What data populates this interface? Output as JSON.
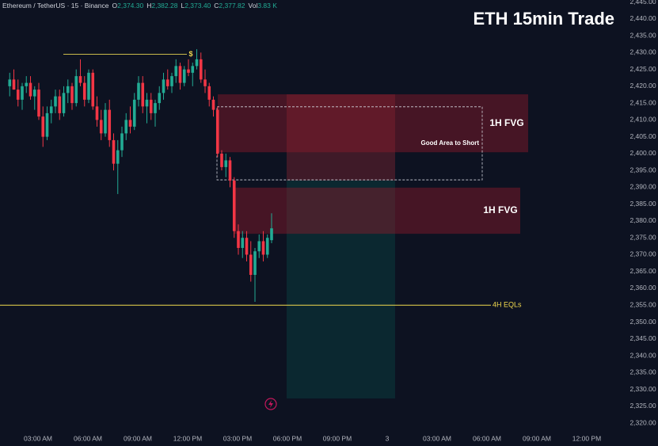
{
  "chart_data": {
    "type": "candlestick",
    "title": "ETH 15min Trade",
    "header": {
      "symbol": "Ethereum / TetherUS · 15 · Binance",
      "fields": [
        {
          "key": "O",
          "value": "2,374.30"
        },
        {
          "key": "H",
          "value": "2,382.28"
        },
        {
          "key": "L",
          "value": "2,373.40"
        },
        {
          "key": "C",
          "value": "2,377.82"
        },
        {
          "key": "Vol",
          "value": "3.83 K"
        }
      ]
    },
    "x_labels": [
      "03:00 AM",
      "06:00 AM",
      "09:00 AM",
      "12:00 PM",
      "03:00 PM",
      "06:00 PM",
      "09:00 PM",
      "3",
      "03:00 AM",
      "06:00 AM",
      "09:00 AM",
      "12:00 PM"
    ],
    "ylim": [
      2313.2,
      2445.6
    ],
    "yticks": [
      {
        "value": 2320,
        "label": "2,320.00"
      },
      {
        "value": 2325,
        "label": "2,325.00"
      },
      {
        "value": 2330,
        "label": "2,330.00"
      },
      {
        "value": 2335,
        "label": "2,335.00"
      },
      {
        "value": 2340,
        "label": "2,340.00"
      },
      {
        "value": 2345,
        "label": "2,345.00"
      },
      {
        "value": 2350,
        "label": "2,350.00"
      },
      {
        "value": 2355,
        "label": "2,355.00"
      },
      {
        "value": 2360,
        "label": "2,360.00"
      },
      {
        "value": 2365,
        "label": "2,365.00"
      },
      {
        "value": 2370,
        "label": "2,370.00"
      },
      {
        "value": 2375,
        "label": "2,375.00"
      },
      {
        "value": 2380,
        "label": "2,380.00"
      },
      {
        "value": 2385,
        "label": "2,385.00"
      },
      {
        "value": 2390,
        "label": "2,390.00"
      },
      {
        "value": 2395,
        "label": "2,395.00"
      },
      {
        "value": 2400,
        "label": "2,400.00"
      },
      {
        "value": 2405,
        "label": "2,405.00"
      },
      {
        "value": 2410,
        "label": "2,410.00"
      },
      {
        "value": 2415,
        "label": "2,415.00"
      },
      {
        "value": 2420,
        "label": "2,420.00"
      },
      {
        "value": 2425,
        "label": "2,425.00"
      },
      {
        "value": 2430,
        "label": "2,430.00"
      },
      {
        "value": 2435,
        "label": "2,435.00"
      },
      {
        "value": 2440,
        "label": "2,440.00"
      },
      {
        "value": 2445,
        "label": "2,445.00"
      }
    ],
    "up_color": "#22ab94",
    "down_color": "#f23645",
    "ohlc": [
      [
        2420,
        2424,
        2417,
        2422
      ],
      [
        2422,
        2425,
        2419,
        2419
      ],
      [
        2419,
        2422,
        2414,
        2416
      ],
      [
        2416,
        2421,
        2413,
        2420
      ],
      [
        2420,
        2423,
        2418,
        2421
      ],
      [
        2421,
        2423,
        2416,
        2417
      ],
      [
        2417,
        2420,
        2413,
        2419
      ],
      [
        2419,
        2421,
        2410,
        2411
      ],
      [
        2411,
        2414,
        2402,
        2405
      ],
      [
        2405,
        2414,
        2404,
        2412
      ],
      [
        2412,
        2416,
        2409,
        2414
      ],
      [
        2414,
        2419,
        2412,
        2417
      ],
      [
        2417,
        2419,
        2410,
        2412
      ],
      [
        2412,
        2420,
        2411,
        2418
      ],
      [
        2418,
        2422,
        2415,
        2420
      ],
      [
        2420,
        2421,
        2413,
        2415
      ],
      [
        2415,
        2425,
        2414,
        2423
      ],
      [
        2423,
        2428,
        2420,
        2421
      ],
      [
        2421,
        2423,
        2414,
        2416
      ],
      [
        2416,
        2425,
        2415,
        2424
      ],
      [
        2424,
        2425,
        2413,
        2414
      ],
      [
        2414,
        2417,
        2408,
        2410
      ],
      [
        2410,
        2413,
        2404,
        2406
      ],
      [
        2406,
        2415,
        2405,
        2413
      ],
      [
        2413,
        2416,
        2402,
        2404
      ],
      [
        2404,
        2406,
        2395,
        2397
      ],
      [
        2397,
        2404,
        2388,
        2401
      ],
      [
        2401,
        2408,
        2399,
        2406
      ],
      [
        2406,
        2412,
        2404,
        2410
      ],
      [
        2410,
        2414,
        2406,
        2408
      ],
      [
        2408,
        2418,
        2407,
        2416
      ],
      [
        2416,
        2423,
        2414,
        2421
      ],
      [
        2421,
        2423,
        2412,
        2414
      ],
      [
        2414,
        2418,
        2409,
        2416
      ],
      [
        2416,
        2418,
        2410,
        2412
      ],
      [
        2412,
        2416,
        2408,
        2415
      ],
      [
        2415,
        2420,
        2413,
        2418
      ],
      [
        2418,
        2424,
        2416,
        2422
      ],
      [
        2422,
        2425,
        2419,
        2420
      ],
      [
        2420,
        2424,
        2418,
        2423
      ],
      [
        2423,
        2428,
        2421,
        2426
      ],
      [
        2426,
        2427,
        2419,
        2421
      ],
      [
        2421,
        2426,
        2420,
        2425
      ],
      [
        2425,
        2428,
        2423,
        2424
      ],
      [
        2424,
        2427,
        2420,
        2426
      ],
      [
        2426,
        2431,
        2425,
        2428
      ],
      [
        2428,
        2430,
        2421,
        2422
      ],
      [
        2422,
        2425,
        2418,
        2420
      ],
      [
        2420,
        2421,
        2414,
        2416
      ],
      [
        2416,
        2417,
        2411,
        2413
      ],
      [
        2413,
        2414,
        2399,
        2400
      ],
      [
        2400,
        2401,
        2395,
        2396
      ],
      [
        2396,
        2400,
        2393,
        2398
      ],
      [
        2398,
        2399,
        2390,
        2392
      ],
      [
        2392,
        2393,
        2375,
        2377
      ],
      [
        2377,
        2379,
        2370,
        2372
      ],
      [
        2372,
        2377,
        2369,
        2375
      ],
      [
        2375,
        2377,
        2368,
        2370
      ],
      [
        2370,
        2374,
        2362,
        2364
      ],
      [
        2364,
        2372,
        2356,
        2371
      ],
      [
        2371,
        2376,
        2369,
        2374
      ],
      [
        2374,
        2377,
        2368,
        2370
      ],
      [
        2370,
        2376,
        2369,
        2375
      ],
      [
        2374.3,
        2382.28,
        2373.4,
        2377.82
      ]
    ],
    "zones": [
      {
        "label": "1H FVG",
        "top": 2417.6,
        "bottom": 2400.4
      },
      {
        "label": "1H FVG",
        "top": 2389.9,
        "bottom": 2376.2
      }
    ],
    "short_area": {
      "label": "Good Area to Short",
      "top": 2413.9,
      "bottom": 2392.2
    },
    "position": {
      "stop": 2417.6,
      "entry": 2392,
      "target": 2327.3
    },
    "levels": [
      {
        "label": "4H EQLs",
        "value": 2355
      },
      {
        "label": "$",
        "value": 2429.5
      }
    ]
  }
}
